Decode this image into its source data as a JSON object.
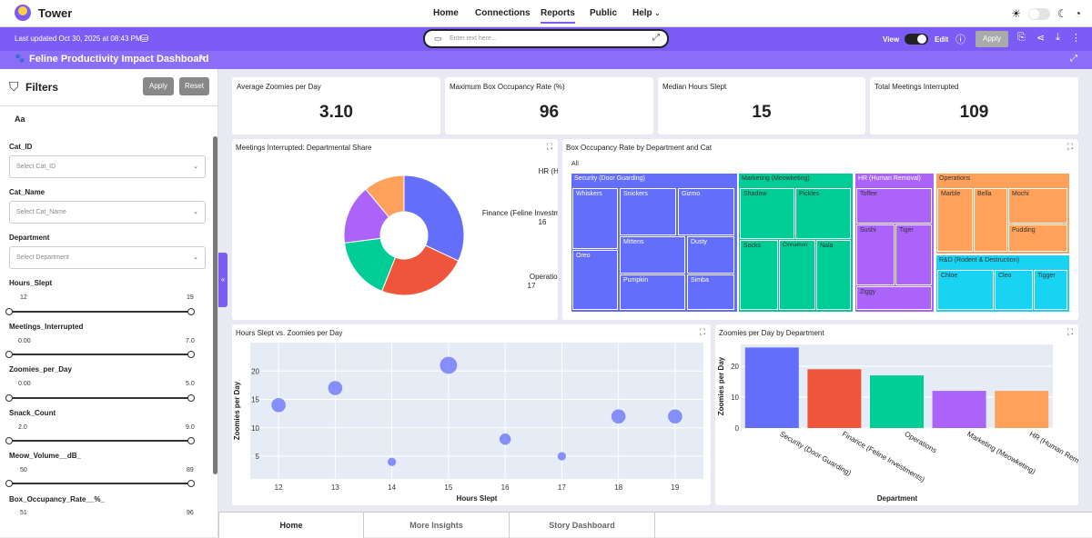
{
  "app": {
    "name": "Tower"
  },
  "nav": {
    "items": [
      {
        "label": "Home"
      },
      {
        "label": "Connections"
      },
      {
        "label": "Reports"
      },
      {
        "label": "Public"
      },
      {
        "label": "Help"
      }
    ],
    "active": "Reports"
  },
  "toolbar": {
    "last_updated": "Last updated Oct 30, 2025 at 08:43 PM",
    "search_placeholder": "Enter text here...",
    "view_label": "View",
    "edit_label": "Edit",
    "apply_label": "Apply"
  },
  "dashboard": {
    "title": "Feline Productivity Impact Dashboard"
  },
  "filters": {
    "title": "Filters",
    "apply_label": "Apply",
    "reset_label": "Reset",
    "aa_label": "Aa",
    "selects": [
      {
        "label": "Cat_ID",
        "placeholder": "Select Cat_ID"
      },
      {
        "label": "Cat_Name",
        "placeholder": "Select Cat_Name"
      },
      {
        "label": "Department",
        "placeholder": "Select Department"
      }
    ],
    "ranges": [
      {
        "label": "Hours_Slept",
        "min": "12",
        "max": "19"
      },
      {
        "label": "Meetings_Interrupted",
        "min": "0.00",
        "max": "7.0"
      },
      {
        "label": "Zoomies_per_Day",
        "min": "0.00",
        "max": "5.0"
      },
      {
        "label": "Snack_Count",
        "min": "2.0",
        "max": "9.0"
      },
      {
        "label": "Meow_Volume__dB_",
        "min": "50",
        "max": "89"
      },
      {
        "label": "Box_Occupancy_Rate__%_",
        "min": "51",
        "max": "96"
      }
    ]
  },
  "kpis": [
    {
      "label": "Average Zoomies per Day",
      "value": "3.10"
    },
    {
      "label": "Maximum Box Occupancy Rate (%)",
      "value": "96"
    },
    {
      "label": "Median Hours Slept",
      "value": "15"
    },
    {
      "label": "Total Meetings Interrupted",
      "value": "109"
    }
  ],
  "treemap": {
    "title": "Box Occupancy Rate by Department and Cat",
    "root_label": "All",
    "groups": [
      {
        "name": "Security (Door Guarding)",
        "color": "#636efa",
        "cats": [
          "Whiskers",
          "Snickers",
          "Gizmo",
          "Mittens",
          "Dusty",
          "Oreo",
          "Pumpkin",
          "Simba"
        ]
      },
      {
        "name": "Marketing (Meowketing)",
        "color": "#00cc96",
        "cats": [
          "Shadow",
          "Pickles",
          "Socks",
          "Cinnamon",
          "Nala"
        ]
      },
      {
        "name": "HR (Human Removal)",
        "color": "#ab63fa",
        "cats": [
          "Toffee",
          "Sushi",
          "Tiger",
          "Ziggy"
        ]
      },
      {
        "name": "Operations",
        "color": "#ffa15a",
        "cats": [
          "Marble",
          "Bella",
          "Mochi",
          "Pudding"
        ]
      },
      {
        "name": "R&D (Rodent & Destruction)",
        "color": "#19d3f3",
        "cats": [
          "Chloe",
          "Cleo",
          "Tigger"
        ]
      }
    ]
  },
  "tabs": [
    {
      "label": "Home"
    },
    {
      "label": "More Insights"
    },
    {
      "label": "Story Dashboard"
    }
  ],
  "chart_data": [
    {
      "type": "pie",
      "title": "Meetings Interrupted: Departmental Share",
      "hole": true,
      "slices": [
        {
          "label": "Security (Door Guarding)",
          "value": 32,
          "color": "#636efa"
        },
        {
          "label": "Marketing (Meowketing)",
          "value": 24,
          "color": "#ef553b"
        },
        {
          "label": "Operations",
          "value": 17,
          "color": "#00cc96"
        },
        {
          "label": "Finance (Feline Investments)",
          "value": 16,
          "color": "#ab63fa"
        },
        {
          "label": "HR (Human Removal)",
          "value": 11,
          "color": "#ffa15a"
        }
      ]
    },
    {
      "type": "scatter",
      "title": "Hours Slept vs. Zoomies per Day",
      "xlabel": "Hours Slept",
      "ylabel": "Zoomies per Day",
      "xlim": [
        11.5,
        19.5
      ],
      "ylim": [
        1,
        25
      ],
      "xticks": [
        12,
        13,
        14,
        15,
        16,
        17,
        18,
        19
      ],
      "yticks": [
        5,
        10,
        15,
        20
      ],
      "color": "#636efa",
      "points": [
        {
          "x": 12,
          "y": 14,
          "size": 3
        },
        {
          "x": 13,
          "y": 17,
          "size": 3
        },
        {
          "x": 14,
          "y": 4,
          "size": 1
        },
        {
          "x": 15,
          "y": 21,
          "size": 4
        },
        {
          "x": 16,
          "y": 8,
          "size": 2
        },
        {
          "x": 17,
          "y": 5,
          "size": 1
        },
        {
          "x": 18,
          "y": 12,
          "size": 3
        },
        {
          "x": 19,
          "y": 12,
          "size": 3
        }
      ]
    },
    {
      "type": "bar",
      "title": "Zoomies per Day by Department",
      "xlabel": "Department",
      "ylabel": "Zoomies per Day",
      "ylim": [
        0,
        27
      ],
      "yticks": [
        0,
        10,
        20
      ],
      "categories": [
        "Security (Door Guarding)",
        "Finance (Feline Investments)",
        "Operations",
        "Marketing (Meowketing)",
        "HR (Human Removal)"
      ],
      "values": [
        26,
        19,
        17,
        12,
        12
      ],
      "colors": [
        "#636efa",
        "#ef553b",
        "#00cc96",
        "#ab63fa",
        "#ffa15a"
      ]
    }
  ]
}
